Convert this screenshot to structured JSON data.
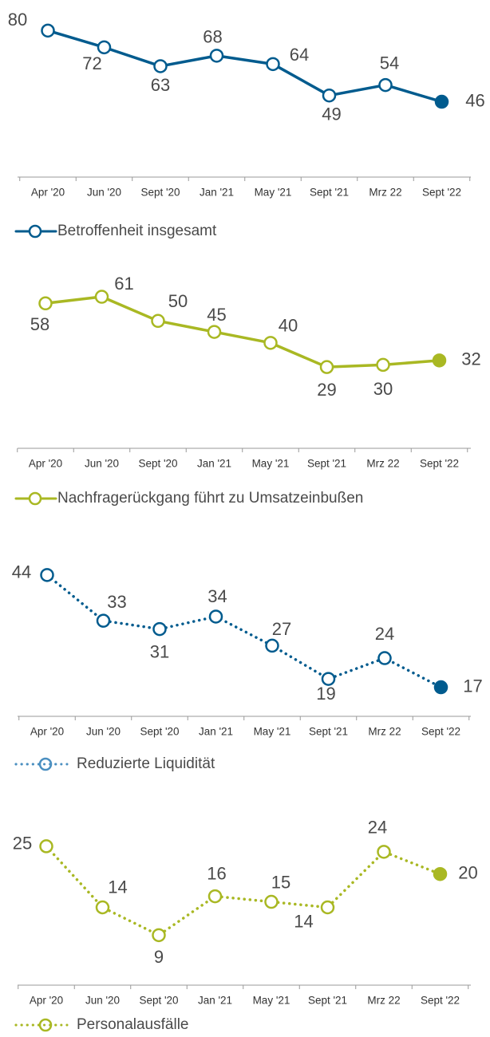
{
  "chart_data": [
    {
      "type": "line",
      "categories": [
        "Apr '20",
        "Jun '20",
        "Sept '20",
        "Jan '21",
        "May '21",
        "Sept '21",
        "Mrz 22",
        "Sept '22"
      ],
      "series": [
        {
          "name": "Betroffenheit insgesamt",
          "color": "#005b8e",
          "line_style": "solid",
          "values": [
            80,
            72,
            63,
            68,
            64,
            49,
            54,
            46
          ]
        }
      ],
      "ylim": [
        10,
        87
      ]
    },
    {
      "type": "line",
      "categories": [
        "Apr '20",
        "Jun '20",
        "Sept '20",
        "Jan '21",
        "May '21",
        "Sept '21",
        "Mrz 22",
        "Sept '22"
      ],
      "series": [
        {
          "name": "Nachfragerückgang führt zu Umsatzeinbußen",
          "color": "#a9b823",
          "line_style": "solid",
          "values": [
            58,
            61,
            50,
            45,
            40,
            29,
            30,
            32
          ]
        }
      ],
      "ylim": [
        -8,
        69
      ]
    },
    {
      "type": "line",
      "categories": [
        "Apr '20",
        "Jun '20",
        "Sept '20",
        "Jan '21",
        "May '21",
        "Sept '21",
        "Mrz 22",
        "Sept '22"
      ],
      "series": [
        {
          "name": "Reduzierte Liquidität",
          "color": "#005b8e",
          "line_style": "dotted",
          "values": [
            44,
            33,
            31,
            34,
            27,
            19,
            24,
            17
          ]
        }
      ],
      "ylim": [
        10,
        48
      ]
    },
    {
      "type": "line",
      "categories": [
        "Apr '20",
        "Jun '20",
        "Sept '20",
        "Jan '21",
        "May '21",
        "Sept '21",
        "Mrz 22",
        "Sept '22"
      ],
      "series": [
        {
          "name": "Personalausfälle",
          "color": "#a9b823",
          "line_style": "dotted",
          "values": [
            25,
            14,
            9,
            16,
            15,
            14,
            24,
            20
          ]
        }
      ],
      "ylim": [
        0,
        28
      ]
    }
  ]
}
